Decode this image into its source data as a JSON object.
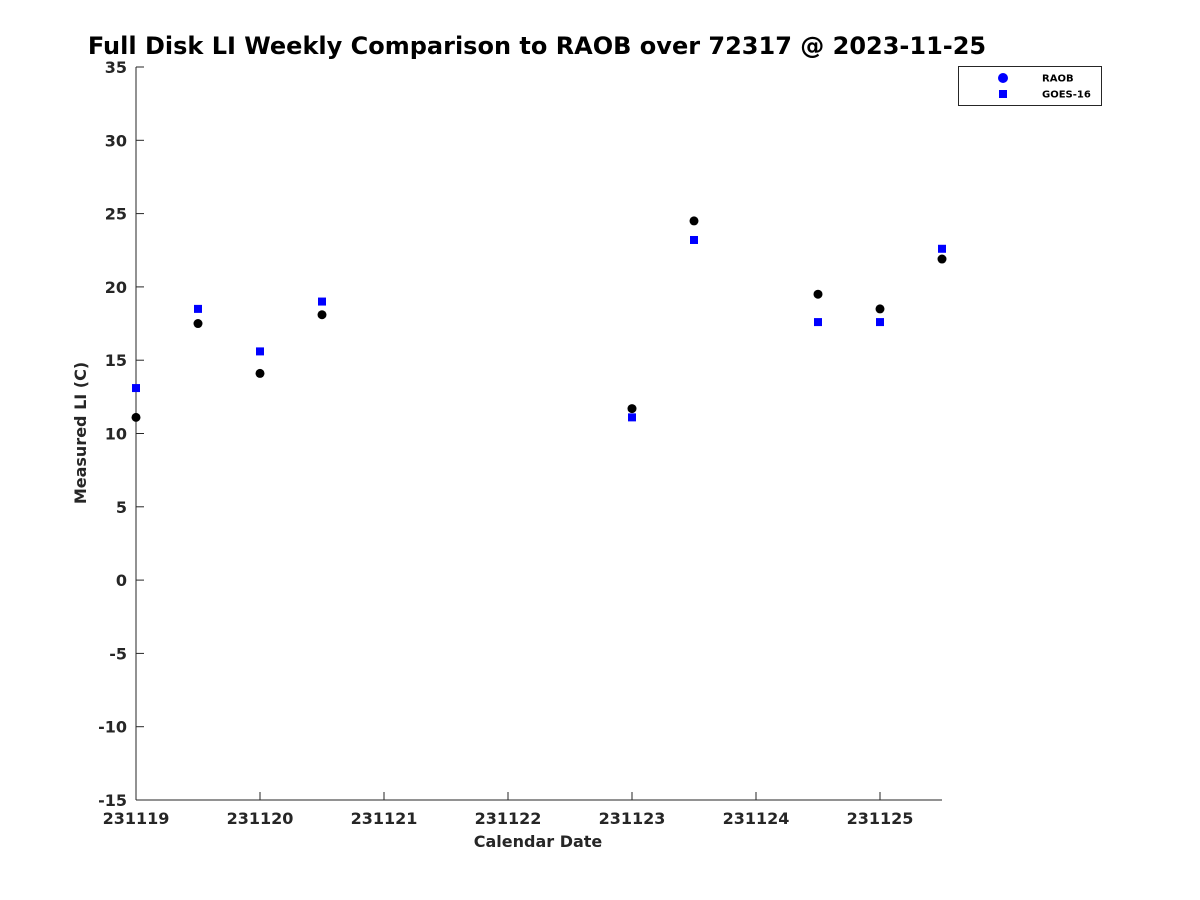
{
  "chart_data": {
    "type": "scatter",
    "title": "Full Disk LI Weekly Comparison to RAOB over 72317 @ 2023-11-25",
    "xlabel": "Calendar Date",
    "ylabel": "Measured LI (C)",
    "xlim": [
      0,
      6.5
    ],
    "ylim": [
      -15,
      35
    ],
    "x_ticks": [
      {
        "value": 0,
        "label": "231119"
      },
      {
        "value": 1,
        "label": "231120"
      },
      {
        "value": 2,
        "label": "231121"
      },
      {
        "value": 3,
        "label": "231122"
      },
      {
        "value": 4,
        "label": "231123"
      },
      {
        "value": 5,
        "label": "231124"
      },
      {
        "value": 6,
        "label": "231125"
      }
    ],
    "y_ticks": [
      {
        "value": 35,
        "label": "35"
      },
      {
        "value": 30,
        "label": "30"
      },
      {
        "value": 25,
        "label": "25"
      },
      {
        "value": 20,
        "label": "20"
      },
      {
        "value": 15,
        "label": "15"
      },
      {
        "value": 10,
        "label": "10"
      },
      {
        "value": 5,
        "label": "5"
      },
      {
        "value": 0,
        "label": "0"
      },
      {
        "value": -5,
        "label": "-5"
      },
      {
        "value": -10,
        "label": "-10"
      },
      {
        "value": -15,
        "label": "-15"
      }
    ],
    "grid": false,
    "legend_position": "top-right",
    "series": [
      {
        "name": "RAOB",
        "marker": "circle",
        "color": "#000000",
        "legend_color": "#0000ff",
        "x": [
          0,
          0.5,
          1,
          1.5,
          4,
          4.5,
          5.5,
          6,
          6.5
        ],
        "y": [
          11.1,
          17.5,
          14.1,
          18.1,
          11.7,
          24.5,
          19.5,
          18.5,
          21.9
        ]
      },
      {
        "name": "GOES-16",
        "marker": "square",
        "color": "#0000ff",
        "legend_color": "#0000ff",
        "x": [
          0,
          0.5,
          1,
          1.5,
          4,
          4.5,
          5.5,
          6,
          6.5
        ],
        "y": [
          13.1,
          18.5,
          15.6,
          19.0,
          11.1,
          23.2,
          17.6,
          17.6,
          22.6
        ]
      }
    ]
  }
}
